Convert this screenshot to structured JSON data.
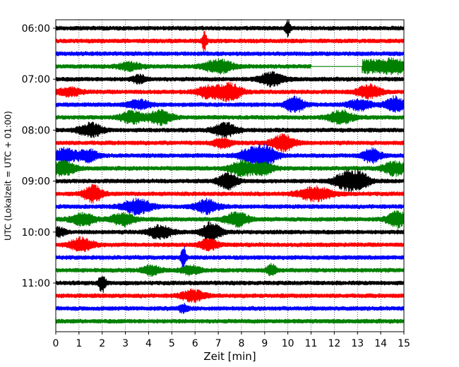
{
  "chart_data": {
    "type": "line",
    "title": "",
    "xlabel": "Zeit  [min]",
    "ylabel": "UTC (Lokalzeit = UTC + 01:00)",
    "xlim": [
      0,
      15
    ],
    "x_ticks": [
      "0",
      "1",
      "2",
      "3",
      "4",
      "5",
      "6",
      "7",
      "8",
      "9",
      "10",
      "11",
      "12",
      "13",
      "14",
      "15"
    ],
    "y_ticks": [
      "06:00",
      "07:00",
      "08:00",
      "09:00",
      "10:00",
      "11:00"
    ],
    "grid_x": true,
    "trace_interval_minutes": 15,
    "first_trace": "06:00",
    "color_cycle": [
      "#000000",
      "#ff0000",
      "#0000ff",
      "#008000"
    ],
    "series": [
      {
        "start": "06:00",
        "color": "#000000",
        "events": [
          [
            10.0,
            12,
            0.1
          ]
        ]
      },
      {
        "start": "06:15",
        "color": "#ff0000",
        "events": [
          [
            6.4,
            13,
            0.1
          ]
        ]
      },
      {
        "start": "06:30",
        "color": "#0000ff",
        "events": []
      },
      {
        "start": "06:45",
        "color": "#008000",
        "events": [
          [
            3.2,
            5,
            0.5
          ],
          [
            7.0,
            9,
            0.6
          ],
          [
            13.5,
            8,
            0.7
          ],
          [
            14.6,
            10,
            0.5
          ]
        ],
        "gap": [
          11.0,
          13.2
        ]
      },
      {
        "start": "07:00",
        "color": "#000000",
        "events": [
          [
            3.6,
            5,
            0.3
          ],
          [
            9.3,
            9,
            0.5
          ]
        ]
      },
      {
        "start": "07:15",
        "color": "#ff0000",
        "events": [
          [
            0.6,
            5,
            0.5
          ],
          [
            6.6,
            8,
            0.5
          ],
          [
            7.5,
            11,
            0.5
          ],
          [
            13.5,
            9,
            0.5
          ]
        ]
      },
      {
        "start": "07:30",
        "color": "#0000ff",
        "events": [
          [
            3.6,
            6,
            0.5
          ],
          [
            10.3,
            10,
            0.4
          ],
          [
            13.1,
            7,
            0.5
          ],
          [
            14.6,
            10,
            0.4
          ]
        ]
      },
      {
        "start": "07:45",
        "color": "#008000",
        "events": [
          [
            3.3,
            8,
            0.5
          ],
          [
            4.5,
            9,
            0.5
          ],
          [
            12.3,
            9,
            0.5
          ]
        ]
      },
      {
        "start": "08:00",
        "color": "#000000",
        "events": [
          [
            1.5,
            9,
            0.5
          ],
          [
            7.3,
            9,
            0.5
          ]
        ]
      },
      {
        "start": "08:15",
        "color": "#ff0000",
        "events": [
          [
            7.2,
            6,
            0.4
          ],
          [
            9.8,
            11,
            0.5
          ]
        ]
      },
      {
        "start": "08:30",
        "color": "#0000ff",
        "events": [
          [
            0.4,
            10,
            0.5
          ],
          [
            1.4,
            8,
            0.4
          ],
          [
            8.5,
            10,
            0.6
          ],
          [
            9.1,
            9,
            0.5
          ],
          [
            13.6,
            9,
            0.4
          ]
        ]
      },
      {
        "start": "08:45",
        "color": "#008000",
        "events": [
          [
            0.3,
            10,
            0.5
          ],
          [
            8.0,
            9,
            0.5
          ],
          [
            8.9,
            8,
            0.5
          ],
          [
            14.6,
            9,
            0.5
          ]
        ]
      },
      {
        "start": "09:00",
        "color": "#000000",
        "events": [
          [
            7.4,
            11,
            0.4
          ],
          [
            12.5,
            11,
            0.5
          ],
          [
            13.1,
            11,
            0.4
          ]
        ]
      },
      {
        "start": "09:15",
        "color": "#ff0000",
        "events": [
          [
            1.6,
            11,
            0.4
          ],
          [
            11.2,
            9,
            0.7
          ]
        ]
      },
      {
        "start": "09:30",
        "color": "#0000ff",
        "events": [
          [
            3.5,
            10,
            0.6
          ],
          [
            6.5,
            9,
            0.5
          ]
        ]
      },
      {
        "start": "09:45",
        "color": "#008000",
        "events": [
          [
            1.2,
            8,
            0.5
          ],
          [
            2.9,
            8,
            0.5
          ],
          [
            7.8,
            9,
            0.5
          ],
          [
            14.7,
            11,
            0.4
          ]
        ]
      },
      {
        "start": "10:00",
        "color": "#000000",
        "events": [
          [
            0.1,
            6,
            0.3
          ],
          [
            4.5,
            9,
            0.5
          ],
          [
            6.7,
            13,
            0.4
          ]
        ]
      },
      {
        "start": "10:15",
        "color": "#ff0000",
        "events": [
          [
            1.1,
            9,
            0.5
          ],
          [
            6.6,
            7,
            0.4
          ]
        ]
      },
      {
        "start": "10:30",
        "color": "#0000ff",
        "events": [
          [
            5.5,
            16,
            0.1
          ]
        ]
      },
      {
        "start": "10:45",
        "color": "#008000",
        "events": [
          [
            4.1,
            6,
            0.4
          ],
          [
            5.8,
            6,
            0.4
          ],
          [
            9.3,
            8,
            0.2
          ]
        ]
      },
      {
        "start": "11:00",
        "color": "#000000",
        "events": [
          [
            2.0,
            12,
            0.15
          ]
        ]
      },
      {
        "start": "11:15",
        "color": "#ff0000",
        "events": [
          [
            5.9,
            7,
            0.5
          ]
        ]
      },
      {
        "start": "11:30",
        "color": "#0000ff",
        "events": [
          [
            5.5,
            5,
            0.2
          ]
        ]
      },
      {
        "start": "11:45",
        "color": "#008000",
        "events": []
      }
    ]
  }
}
